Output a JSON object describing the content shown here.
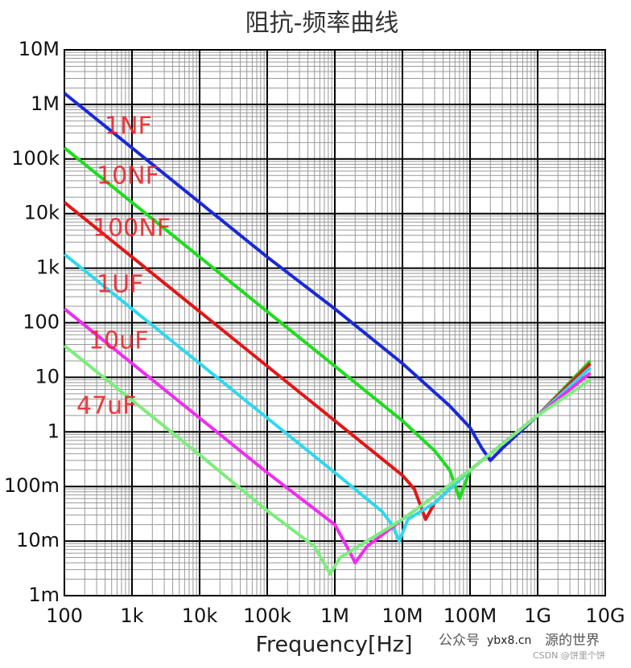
{
  "chart_data": {
    "type": "line",
    "title": "阻抗-频率曲线",
    "x_label": "Frequency[Hz]",
    "log_x": true,
    "log_y": true,
    "grid": true,
    "minor_grid": true,
    "xlim": [
      100,
      10000000000
    ],
    "ylim": [
      0.001,
      10000000
    ],
    "xticks": [
      100,
      {
        "value": 1000,
        "label": "1k"
      },
      {
        "value": 10000,
        "label": "10k"
      },
      {
        "value": 100000,
        "label": "100k"
      },
      {
        "value": 1000000,
        "label": "1M"
      },
      {
        "value": 10000000,
        "label": "10M"
      },
      {
        "value": 100000000,
        "label": "100M"
      },
      {
        "value": 1000000000,
        "label": "1G"
      },
      {
        "value": 10000000000,
        "label": "10G"
      }
    ],
    "yticks": [
      {
        "value": 0.001,
        "label": "1m"
      },
      {
        "value": 0.01,
        "label": "10m"
      },
      {
        "value": 0.1,
        "label": "100m"
      },
      1,
      10,
      100,
      {
        "value": 1000,
        "label": "1k"
      },
      {
        "value": 10000,
        "label": "10k"
      },
      {
        "value": 100000,
        "label": "100k"
      },
      {
        "value": 1000000,
        "label": "1M"
      },
      {
        "value": 10000000,
        "label": "10M"
      }
    ],
    "label_color": "#e8262b",
    "series": [
      {
        "name": "1NF",
        "color": "#1a2ad6",
        "x": [
          100,
          1000,
          10000,
          100000,
          1000000,
          10000000,
          50000000,
          100000000,
          150000000,
          200000000,
          300000000,
          1000000000,
          3000000000,
          6000000000
        ],
        "values": [
          1600000,
          160000,
          16000,
          1600,
          180,
          18,
          3,
          1.2,
          0.5,
          0.3,
          0.5,
          2,
          7,
          15
        ]
      },
      {
        "name": "10NF",
        "color": "#1fdc1f",
        "x": [
          100,
          1000,
          10000,
          100000,
          1000000,
          10000000,
          30000000,
          50000000,
          70000000,
          100000000,
          1000000000,
          6000000000
        ],
        "values": [
          160000,
          16000,
          1600,
          160,
          16,
          1.6,
          0.45,
          0.2,
          0.06,
          0.2,
          2,
          20
        ]
      },
      {
        "name": "100NF",
        "color": "#e01818",
        "x": [
          100,
          1000,
          10000,
          100000,
          1000000,
          10000000,
          15000000,
          22000000,
          30000000,
          100000000,
          1000000000,
          6000000000
        ],
        "values": [
          16000,
          1600,
          160,
          16,
          1.6,
          0.16,
          0.09,
          0.025,
          0.05,
          0.2,
          2,
          18
        ]
      },
      {
        "name": "1UF",
        "color": "#2ed8ee",
        "x": [
          100,
          1000,
          10000,
          100000,
          1000000,
          5000000,
          7000000,
          9000000,
          12000000,
          30000000,
          100000000,
          1000000000,
          6000000000
        ],
        "values": [
          1800,
          180,
          18,
          1.8,
          0.18,
          0.035,
          0.02,
          0.01,
          0.025,
          0.05,
          0.2,
          2,
          15
        ]
      },
      {
        "name": "10uF",
        "color": "#ee2eee",
        "x": [
          100,
          1000,
          10000,
          100000,
          1000000,
          1500000,
          2000000,
          3000000,
          10000000,
          100000000,
          1000000000,
          6000000000
        ],
        "values": [
          180,
          18,
          1.8,
          0.18,
          0.02,
          0.008,
          0.004,
          0.008,
          0.025,
          0.2,
          2,
          12
        ]
      },
      {
        "name": "47uF",
        "color": "#7ced7c",
        "x": [
          100,
          1000,
          10000,
          100000,
          500000,
          850000,
          1200000,
          10000000,
          100000000,
          1000000000,
          6000000000
        ],
        "values": [
          38,
          3.8,
          0.38,
          0.036,
          0.008,
          0.0025,
          0.005,
          0.025,
          0.2,
          2,
          9
        ]
      }
    ],
    "watermarks": [
      "公众号",
      "源的世界",
      "ybx8.cn",
      "CSDN @饼里个饼"
    ]
  }
}
